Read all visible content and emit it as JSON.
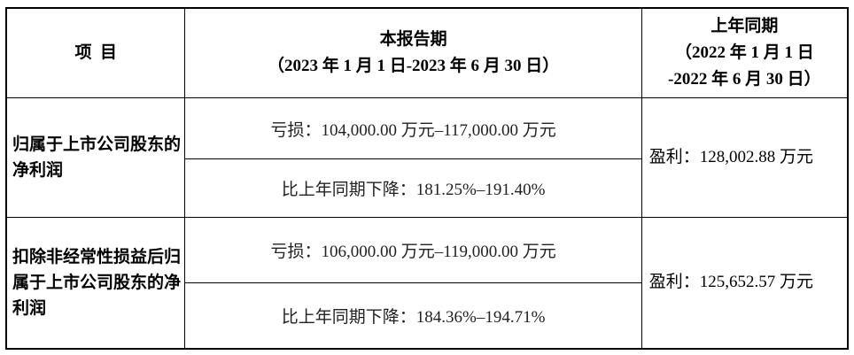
{
  "header": {
    "item": "项  目",
    "current_title": "本报告期",
    "current_period": "（2023 年 1 月 1 日-2023 年 6 月 30 日）",
    "prior_title": "上年同期",
    "prior_period_line1": "（2022 年 1 月 1 日",
    "prior_period_line2": "-2022 年 6 月 30 日）"
  },
  "rows": [
    {
      "item": "归属于上市公司股东的净利润",
      "current_value": "亏损：104,000.00 万元–117,000.00 万元",
      "current_change": "比上年同期下降：181.25%–191.40%",
      "prior": "盈利：128,002.88 万元"
    },
    {
      "item": "扣除非经常性损益后归属于上市公司股东的净利润",
      "current_value": "亏损：106,000.00 万元–119,000.00 万元",
      "current_change": "比上年同期下降：184.36%–194.71%",
      "prior": "盈利：125,652.57 万元"
    }
  ]
}
